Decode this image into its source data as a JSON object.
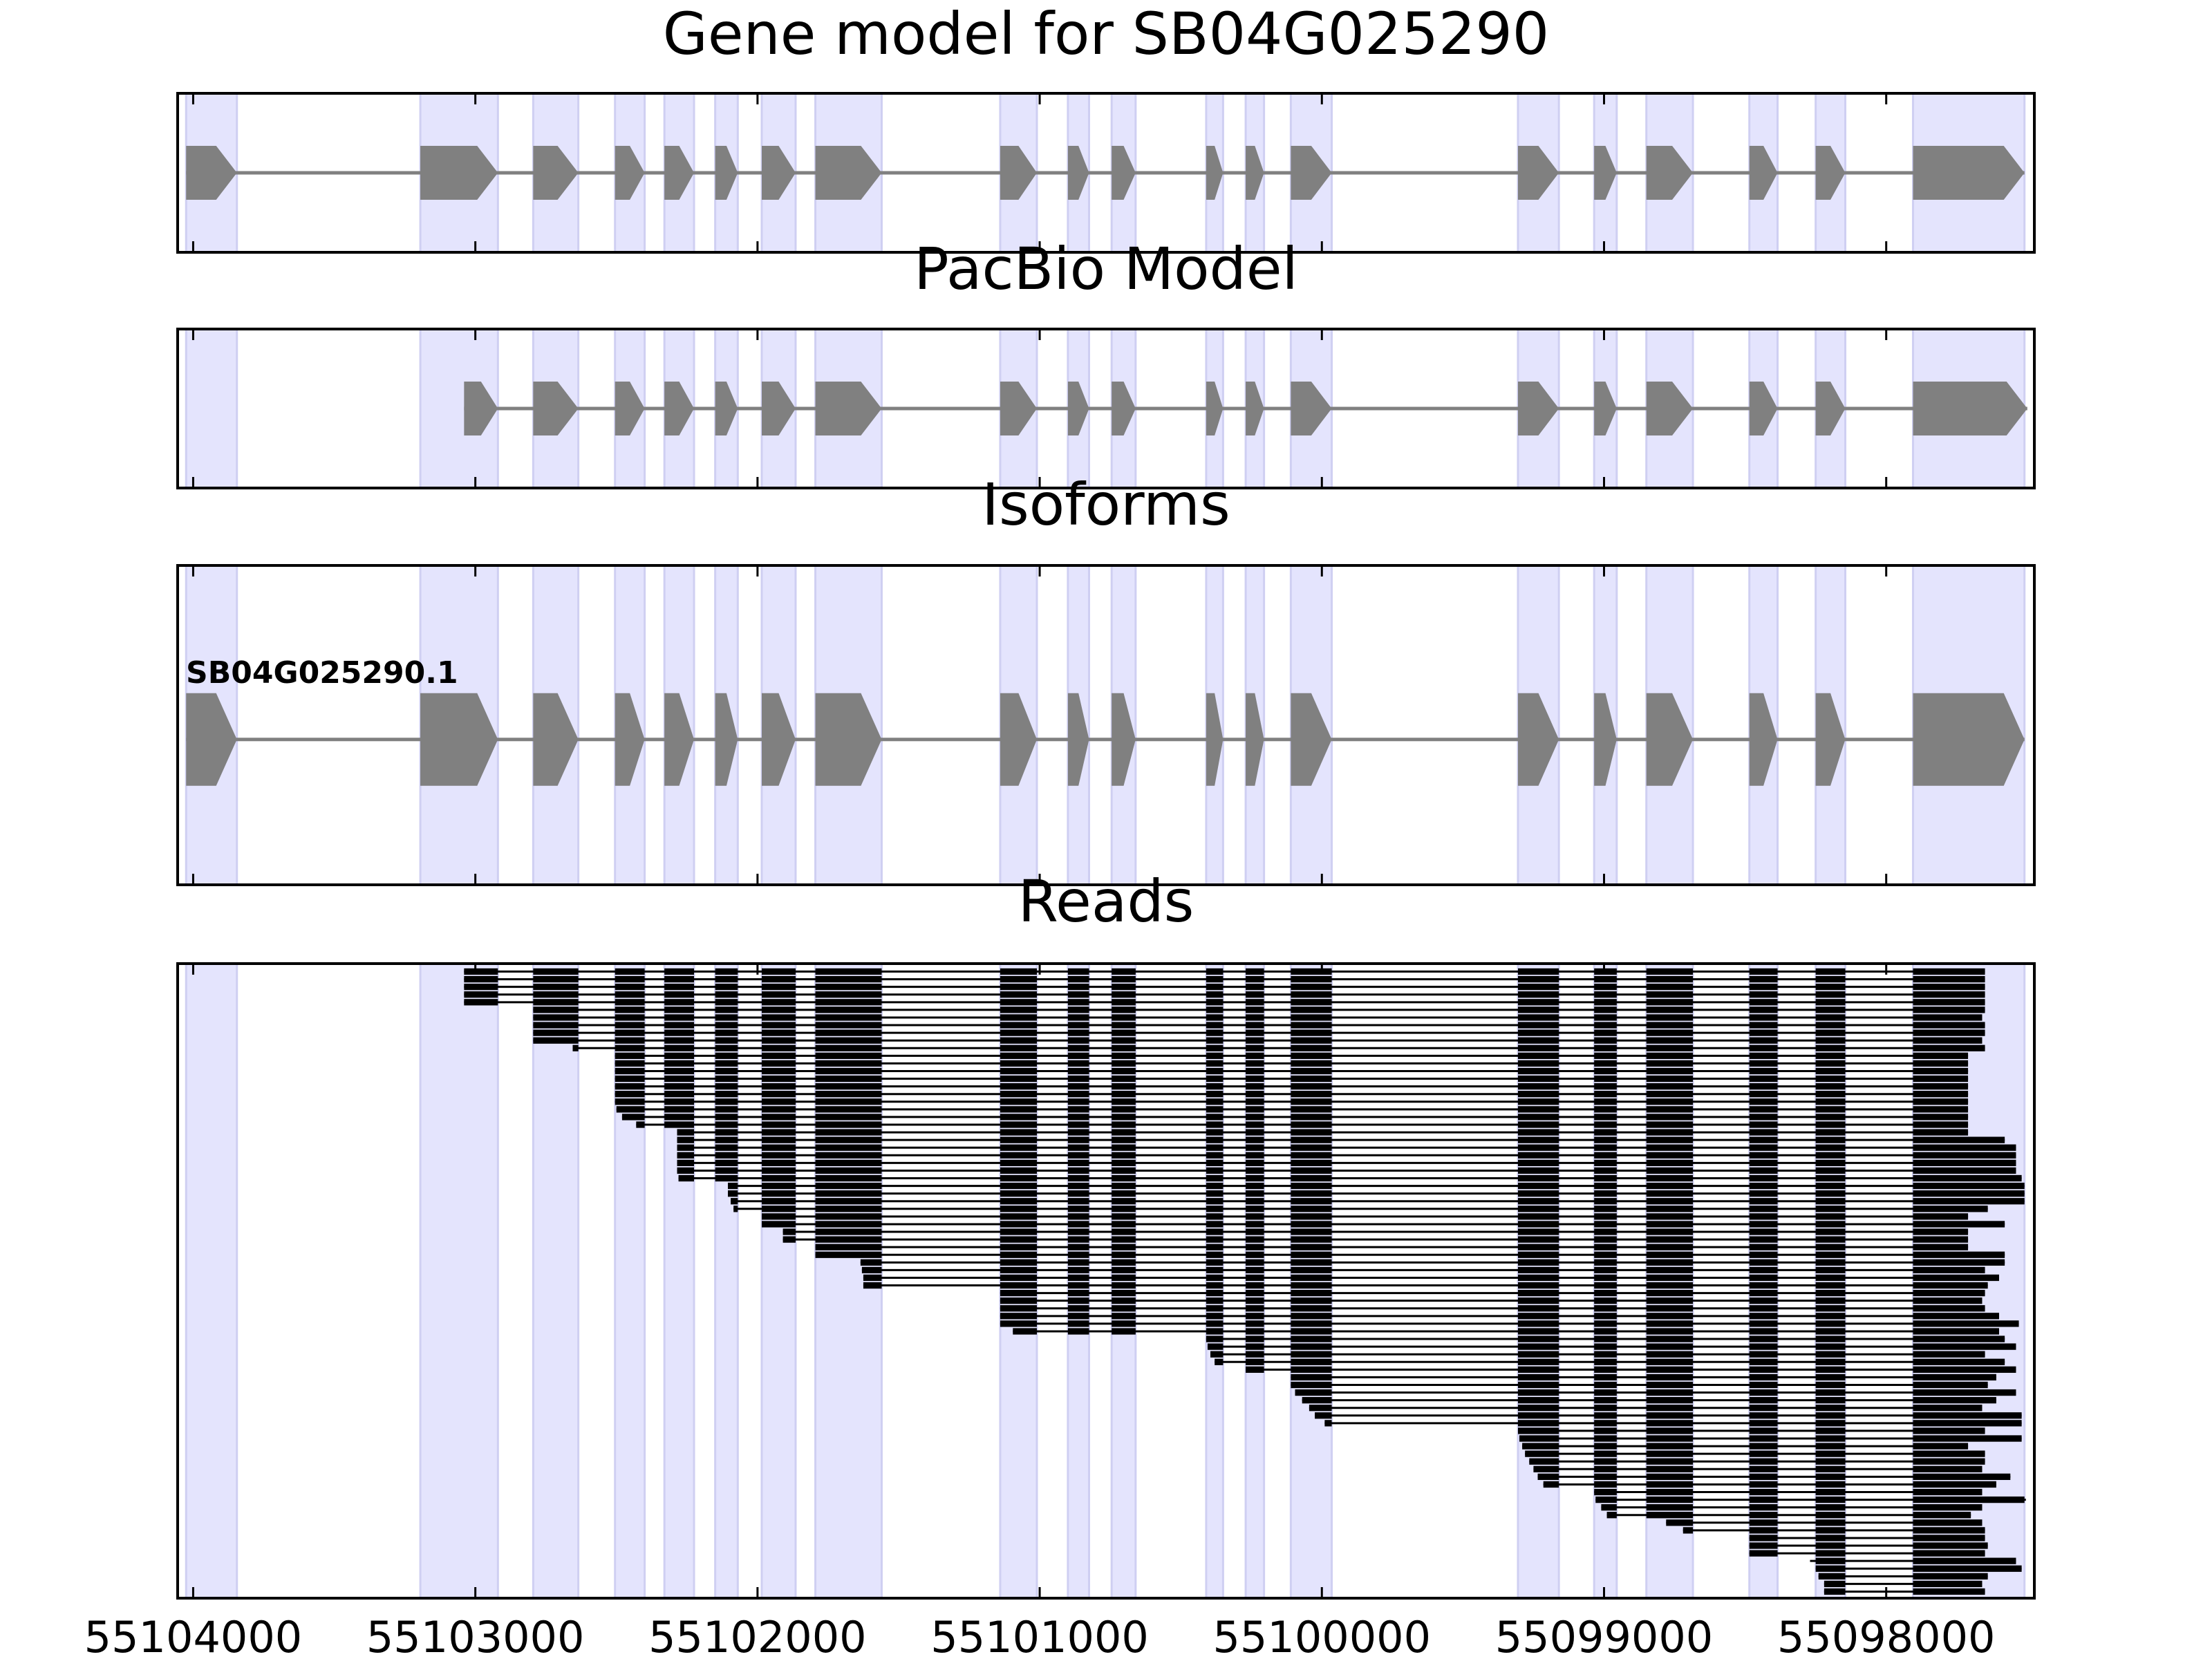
{
  "chart_data": {
    "type": "gene-track",
    "xlim": [
      55104055,
      55097475
    ],
    "xticks": [
      55104000,
      55103000,
      55102000,
      55101000,
      55100000,
      55099000,
      55098000
    ],
    "shade_color": "#e4e4fd",
    "exon_color": "#808080",
    "read_color": "#000000",
    "shaded_regions": [
      [
        55104025,
        55103845
      ],
      [
        55103195,
        55102920
      ],
      [
        55102795,
        55102635
      ],
      [
        55102505,
        55102400
      ],
      [
        55102330,
        55102225
      ],
      [
        55102150,
        55102070
      ],
      [
        55101985,
        55101865
      ],
      [
        55101795,
        55101560
      ],
      [
        55101140,
        55101010
      ],
      [
        55100900,
        55100825
      ],
      [
        55100745,
        55100660
      ],
      [
        55100410,
        55100350
      ],
      [
        55100270,
        55100205
      ],
      [
        55100110,
        55099965
      ],
      [
        55099305,
        55099160
      ],
      [
        55099035,
        55098955
      ],
      [
        55098850,
        55098685
      ],
      [
        55098485,
        55098385
      ],
      [
        55098250,
        55098145
      ],
      [
        55097905,
        55097510
      ]
    ],
    "panels": [
      {
        "type": "model",
        "title": "Gene model for SB04G025290",
        "models": [
          {
            "exons": [
              [
                55104025,
                55103845
              ],
              [
                55103195,
                55102920
              ],
              [
                55102795,
                55102635
              ],
              [
                55102505,
                55102400
              ],
              [
                55102330,
                55102225
              ],
              [
                55102150,
                55102070
              ],
              [
                55101985,
                55101865
              ],
              [
                55101795,
                55101560
              ],
              [
                55101140,
                55101010
              ],
              [
                55100900,
                55100825
              ],
              [
                55100745,
                55100660
              ],
              [
                55100410,
                55100350
              ],
              [
                55100270,
                55100205
              ],
              [
                55100110,
                55099965
              ],
              [
                55099305,
                55099160
              ],
              [
                55099035,
                55098955
              ],
              [
                55098850,
                55098685
              ],
              [
                55098485,
                55098385
              ],
              [
                55098250,
                55098145
              ],
              [
                55097905,
                55097510
              ]
            ]
          }
        ]
      },
      {
        "type": "model",
        "title": "PacBio Model",
        "models": [
          {
            "exons": [
              [
                55103040,
                55102920
              ],
              [
                55102795,
                55102635
              ],
              [
                55102505,
                55102400
              ],
              [
                55102330,
                55102225
              ],
              [
                55102150,
                55102070
              ],
              [
                55101985,
                55101865
              ],
              [
                55101795,
                55101560
              ],
              [
                55101140,
                55101010
              ],
              [
                55100900,
                55100825
              ],
              [
                55100745,
                55100660
              ],
              [
                55100410,
                55100350
              ],
              [
                55100270,
                55100205
              ],
              [
                55100110,
                55099965
              ],
              [
                55099305,
                55099160
              ],
              [
                55099035,
                55098955
              ],
              [
                55098850,
                55098685
              ],
              [
                55098485,
                55098385
              ],
              [
                55098250,
                55098145
              ],
              [
                55097905,
                55097500
              ]
            ]
          }
        ]
      },
      {
        "type": "model",
        "title": "Isoforms",
        "models": [
          {
            "name": "SB04G025290.1",
            "exons": [
              [
                55104025,
                55103845
              ],
              [
                55103195,
                55102920
              ],
              [
                55102795,
                55102635
              ],
              [
                55102505,
                55102400
              ],
              [
                55102330,
                55102225
              ],
              [
                55102150,
                55102070
              ],
              [
                55101985,
                55101865
              ],
              [
                55101795,
                55101560
              ],
              [
                55101140,
                55101010
              ],
              [
                55100900,
                55100825
              ],
              [
                55100745,
                55100660
              ],
              [
                55100410,
                55100350
              ],
              [
                55100270,
                55100205
              ],
              [
                55100110,
                55099965
              ],
              [
                55099305,
                55099160
              ],
              [
                55099035,
                55098955
              ],
              [
                55098850,
                55098685
              ],
              [
                55098485,
                55098385
              ],
              [
                55098250,
                55098145
              ],
              [
                55097905,
                55097510
              ]
            ]
          }
        ]
      },
      {
        "type": "reads",
        "title": "Reads",
        "reads": [
          [
            55103040,
            55097650
          ],
          [
            55103040,
            55097650
          ],
          [
            55103040,
            55097650
          ],
          [
            55103040,
            55097650
          ],
          [
            55103040,
            55097650
          ],
          [
            55102795,
            55097650
          ],
          [
            55102795,
            55097660
          ],
          [
            55102795,
            55097650
          ],
          [
            55102795,
            55097650
          ],
          [
            55102795,
            55097660
          ],
          [
            55102655,
            55097650
          ],
          [
            55102505,
            55097710
          ],
          [
            55102505,
            55097710
          ],
          [
            55102505,
            55097710
          ],
          [
            55102505,
            55097710
          ],
          [
            55102505,
            55097710
          ],
          [
            55102505,
            55097710
          ],
          [
            55102505,
            55097710
          ],
          [
            55102500,
            55097710
          ],
          [
            55102480,
            55097710
          ],
          [
            55102430,
            55097710
          ],
          [
            55102285,
            55097710
          ],
          [
            55102285,
            55097580
          ],
          [
            55102285,
            55097540
          ],
          [
            55102285,
            55097540
          ],
          [
            55102285,
            55097540
          ],
          [
            55102285,
            55097540
          ],
          [
            55102280,
            55097520
          ],
          [
            55102105,
            55097510
          ],
          [
            55102105,
            55097510
          ],
          [
            55102095,
            55097510
          ],
          [
            55102085,
            55097640
          ],
          [
            55101985,
            55097710
          ],
          [
            55101985,
            55097580
          ],
          [
            55101910,
            55097710
          ],
          [
            55101910,
            55097710
          ],
          [
            55101795,
            55097710
          ],
          [
            55101795,
            55097580
          ],
          [
            55101635,
            55097580
          ],
          [
            55101630,
            55097650
          ],
          [
            55101625,
            55097600
          ],
          [
            55101625,
            55097640
          ],
          [
            55101140,
            55097650
          ],
          [
            55101140,
            55097660
          ],
          [
            55101140,
            55097650
          ],
          [
            55101140,
            55097600
          ],
          [
            55101140,
            55097530
          ],
          [
            55101095,
            55097600
          ],
          [
            55100410,
            55097580
          ],
          [
            55100405,
            55097540
          ],
          [
            55100395,
            55097650
          ],
          [
            55100380,
            55097580
          ],
          [
            55100270,
            55097540
          ],
          [
            55100110,
            55097610
          ],
          [
            55100110,
            55097640
          ],
          [
            55100095,
            55097540
          ],
          [
            55100070,
            55097610
          ],
          [
            55100045,
            55097660
          ],
          [
            55100025,
            55097520
          ],
          [
            55099990,
            55097520
          ],
          [
            55099305,
            55097650
          ],
          [
            55099300,
            55097520
          ],
          [
            55099290,
            55097710
          ],
          [
            55099280,
            55097650
          ],
          [
            55099265,
            55097650
          ],
          [
            55099250,
            55097660
          ],
          [
            55099235,
            55097560
          ],
          [
            55099215,
            55097610
          ],
          [
            55099035,
            55097660
          ],
          [
            55099030,
            55097505
          ],
          [
            55099010,
            55097660
          ],
          [
            55098990,
            55097700
          ],
          [
            55098780,
            55097660
          ],
          [
            55098720,
            55097650
          ],
          [
            55098485,
            55097650
          ],
          [
            55098485,
            55097640
          ],
          [
            55098485,
            55097650
          ],
          [
            55098270,
            55097540
          ],
          [
            55098250,
            55097520
          ],
          [
            55098240,
            55097640
          ],
          [
            55098220,
            55097660
          ],
          [
            55098220,
            55097650
          ]
        ]
      }
    ]
  }
}
